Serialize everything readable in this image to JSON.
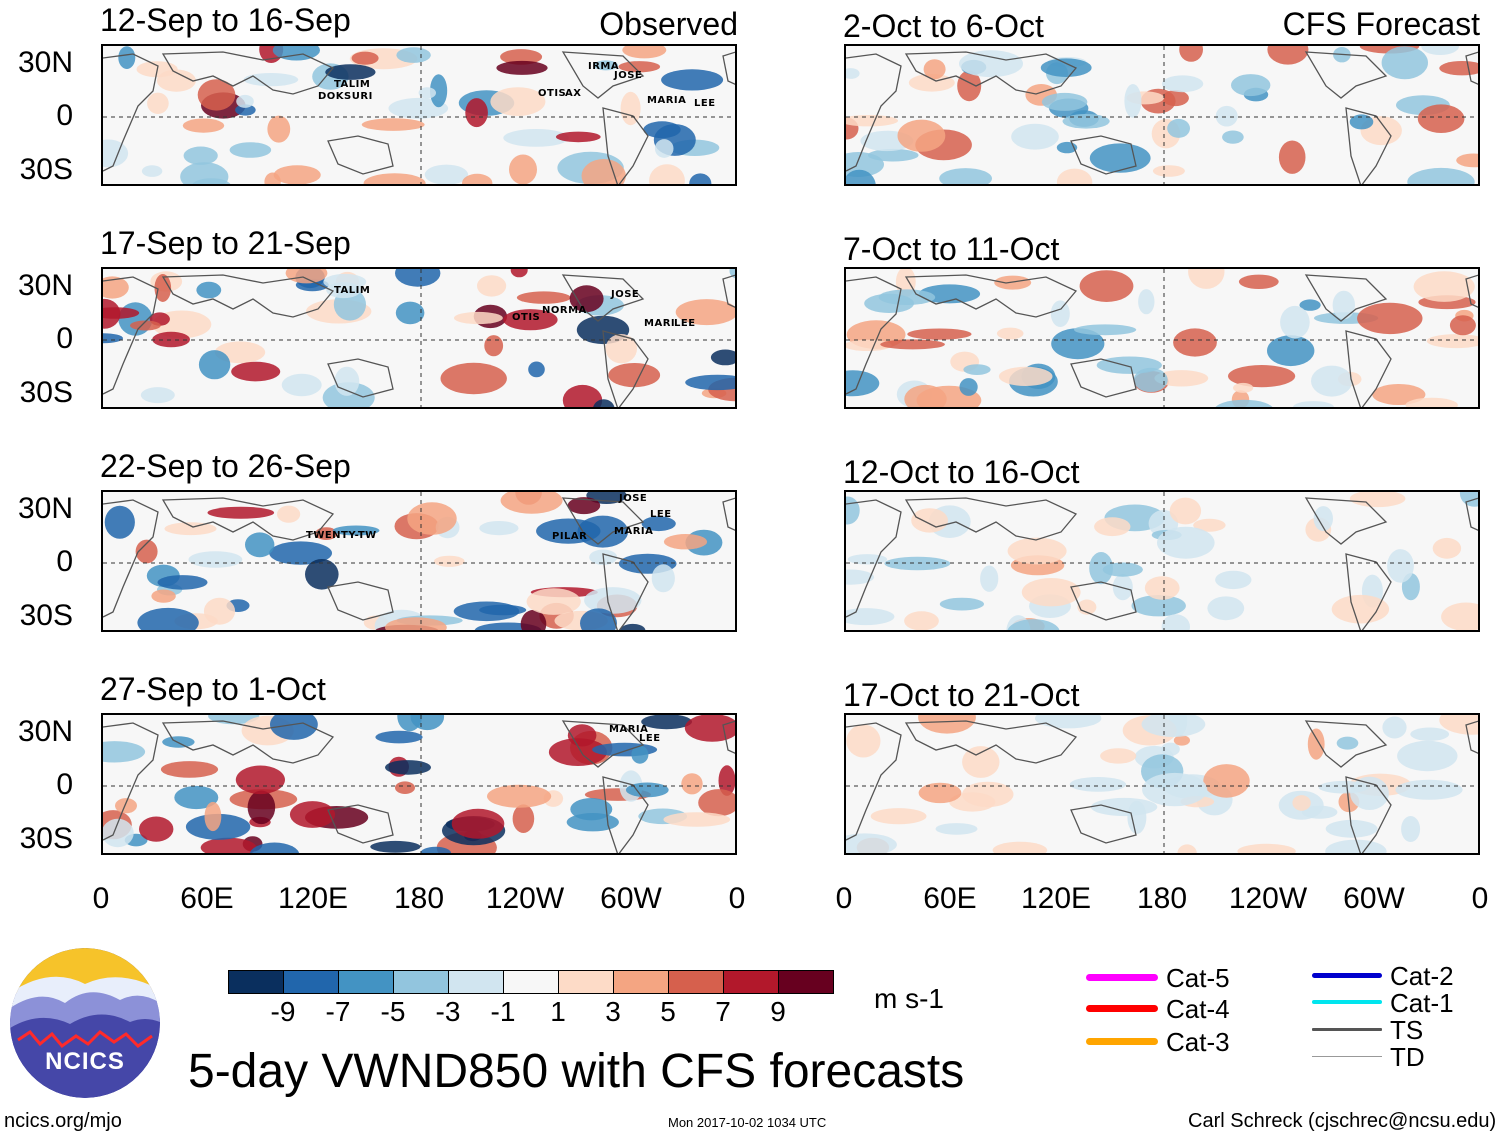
{
  "observed": {
    "label": "Observed",
    "panels": [
      {
        "title": "12-Sep to 16-Sep",
        "storms": [
          "TALIM",
          "DOKSURI",
          "IRMA",
          "JOSE",
          "OTIS",
          "AX",
          "MARIA",
          "LEE"
        ]
      },
      {
        "title": "17-Sep to 21-Sep",
        "storms": [
          "TALIM",
          "JOSE",
          "OTIS",
          "NORMA",
          "MARI",
          "LEE"
        ]
      },
      {
        "title": "22-Sep to 26-Sep",
        "storms": [
          "TWENTY-TW",
          "JOSE",
          "LEE",
          "PILAR",
          "MARIA"
        ]
      },
      {
        "title": "27-Sep to 1-Oct",
        "storms": [
          "MARIA",
          "LEE"
        ]
      }
    ]
  },
  "forecast": {
    "label": "CFS Forecast",
    "panels": [
      {
        "title": "2-Oct to 6-Oct"
      },
      {
        "title": "7-Oct to 11-Oct"
      },
      {
        "title": "12-Oct to 16-Oct"
      },
      {
        "title": "17-Oct to 21-Oct"
      }
    ]
  },
  "y_labels": [
    "30N",
    "0",
    "30S"
  ],
  "x_labels": [
    "0",
    "60E",
    "120E",
    "180",
    "120W",
    "60W",
    "0"
  ],
  "colorbar": {
    "units": "m s-1",
    "ticks": [
      "-9",
      "-7",
      "-5",
      "-3",
      "-1",
      "1",
      "3",
      "5",
      "7",
      "9"
    ],
    "colors": [
      "#0a2f5e",
      "#2166ac",
      "#4393c3",
      "#92c5de",
      "#d1e5f0",
      "#f7f7f7",
      "#fddbc7",
      "#f4a582",
      "#d6604d",
      "#b2182b",
      "#67001f"
    ]
  },
  "legend": [
    {
      "label": "Cat-5",
      "color": "#ff00ff"
    },
    {
      "label": "Cat-4",
      "color": "#ff0000"
    },
    {
      "label": "Cat-3",
      "color": "#ffa500"
    },
    {
      "label": "Cat-2",
      "color": "#0000cd"
    },
    {
      "label": "Cat-1",
      "color": "#00e5ee"
    },
    {
      "label": "TS",
      "color": "#555555"
    },
    {
      "label": "TD",
      "color": "#999999"
    }
  ],
  "title": "5-day VWND850 with CFS forecasts",
  "logo_text": "NCICS",
  "footer": {
    "left": "ncics.org/mjo",
    "center": "Mon 2017-10-02 1034 UTC",
    "right": "Carl Schreck (cjschrec@ncsu.edu)"
  }
}
